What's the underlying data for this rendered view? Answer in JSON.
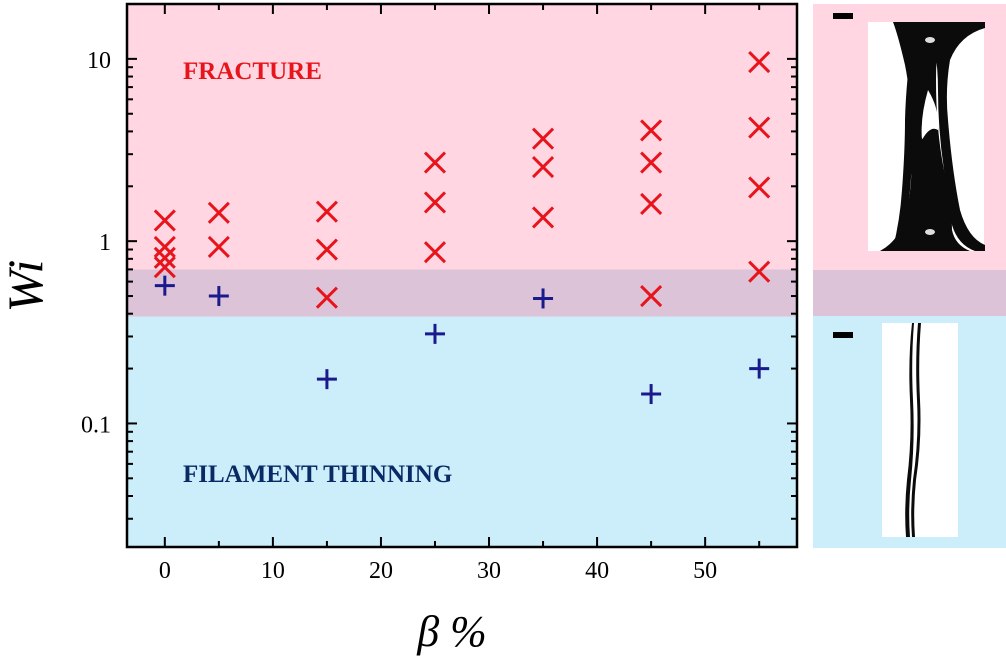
{
  "chart_data": {
    "type": "scatter",
    "xlabel": "β %",
    "ylabel": "Wi",
    "xlim": [
      -3.5,
      58.5
    ],
    "ylim": [
      0.021,
      20
    ],
    "y_scale": "log",
    "x_ticks": [
      0,
      10,
      20,
      30,
      40,
      50
    ],
    "y_ticks": [
      {
        "value": 0.1,
        "label": "0.1"
      },
      {
        "value": 1,
        "label": "1"
      },
      {
        "value": 10,
        "label": "10"
      }
    ],
    "regions": [
      {
        "name": "FRACTURE",
        "from": 0.7,
        "to": 20,
        "color": "#ffd6e2",
        "label_color": "#e8141b"
      },
      {
        "name": "overlap",
        "from": 0.385,
        "to": 0.7,
        "color": "#dcc3d8"
      },
      {
        "name": "FILAMENT THINNING",
        "from": 0.021,
        "to": 0.385,
        "color": "#cbeefa",
        "label_color": "#0a2a66"
      }
    ],
    "series": [
      {
        "marker": "x",
        "color": "#e8141b",
        "points": [
          [
            0,
            1.3
          ],
          [
            0,
            0.93
          ],
          [
            0,
            0.81
          ],
          [
            0,
            0.72
          ],
          [
            5,
            1.43
          ],
          [
            5,
            0.93
          ],
          [
            15,
            1.45
          ],
          [
            15,
            0.9
          ],
          [
            15,
            0.49
          ],
          [
            25,
            2.7
          ],
          [
            25,
            1.63
          ],
          [
            25,
            0.87
          ],
          [
            35,
            3.65
          ],
          [
            35,
            2.55
          ],
          [
            35,
            1.35
          ],
          [
            45,
            4.05
          ],
          [
            45,
            2.7
          ],
          [
            45,
            1.6
          ],
          [
            45,
            0.5
          ],
          [
            55,
            9.6
          ],
          [
            55,
            4.2
          ],
          [
            55,
            1.97
          ],
          [
            55,
            0.68
          ]
        ]
      },
      {
        "marker": "+",
        "color": "#1b1a8c",
        "points": [
          [
            0,
            0.57
          ],
          [
            5,
            0.5
          ],
          [
            15,
            0.175
          ],
          [
            25,
            0.31
          ],
          [
            35,
            0.485
          ],
          [
            45,
            0.145
          ],
          [
            55,
            0.2
          ]
        ]
      }
    ]
  },
  "insets": {
    "top_color": "#ffd6e2",
    "middle_color": "#dcc3d8",
    "bottom_color": "#cbeefa"
  }
}
